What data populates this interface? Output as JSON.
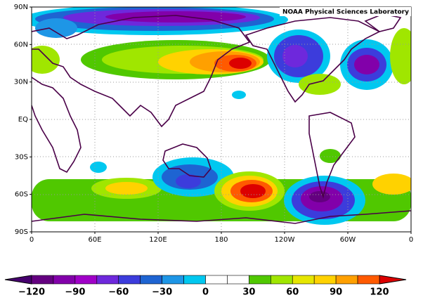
{
  "credit": "NOAA Physical Sciences Laboratory",
  "lat_labels": [
    "90N",
    "60N",
    "30N",
    "EQ",
    "30S",
    "60S",
    "90S"
  ],
  "lon_labels": [
    "0",
    "60E",
    "120E",
    "180",
    "120W",
    "60W",
    "0"
  ],
  "colorbar": {
    "labels": [
      "−120",
      "−90",
      "−60",
      "−30",
      "0",
      "30",
      "60",
      "90",
      "120"
    ]
  }
}
